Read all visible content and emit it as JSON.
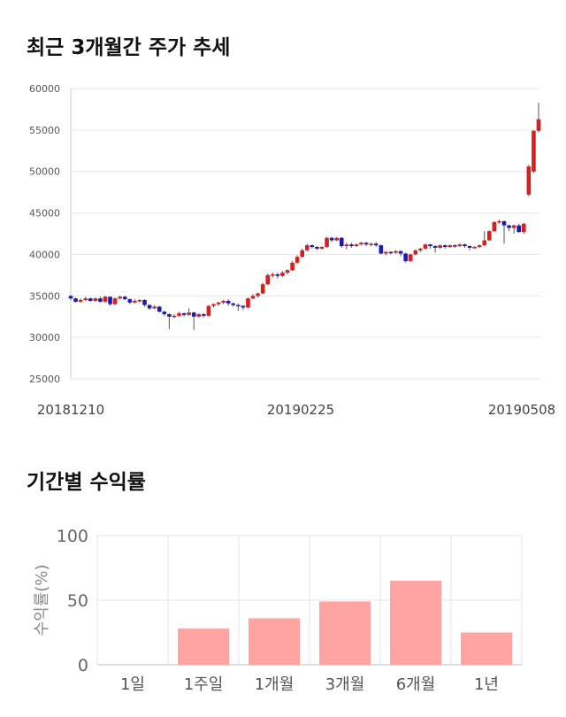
{
  "titles": {
    "price": "최근 3개월간 주가 추세",
    "returns": "기간별 수익률"
  },
  "colors": {
    "up": "#d81f1f",
    "down": "#1b1bb3",
    "bar": "#ffa3a3",
    "grid": "#e6e6e6"
  },
  "chart_data": [
    {
      "type": "candlestick",
      "title": "최근 3개월간 주가 추세",
      "ylim": [
        25000,
        60000
      ],
      "yticks": [
        60000,
        55000,
        50000,
        45000,
        40000,
        35000,
        30000,
        25000
      ],
      "xtick_labels": [
        {
          "index": 0,
          "label": "20181210"
        },
        {
          "index": 50,
          "label": "20190225"
        },
        {
          "index": 99,
          "label": "20190508"
        }
      ],
      "candles": [
        [
          35000,
          34700,
          35100,
          34500
        ],
        [
          34700,
          34300,
          34800,
          34200
        ],
        [
          34300,
          34500,
          34700,
          34200
        ],
        [
          34500,
          34700,
          34900,
          34400
        ],
        [
          34700,
          34400,
          34800,
          34300
        ],
        [
          34400,
          34700,
          34800,
          34300
        ],
        [
          34700,
          34300,
          34900,
          34200
        ],
        [
          34300,
          34900,
          35000,
          34200
        ],
        [
          34900,
          34000,
          34900,
          33800
        ],
        [
          34000,
          34700,
          34800,
          33900
        ],
        [
          34700,
          34900,
          35000,
          34600
        ],
        [
          34900,
          34600,
          35000,
          34500
        ],
        [
          34600,
          34200,
          34700,
          34000
        ],
        [
          34200,
          34400,
          34600,
          34100
        ],
        [
          34400,
          34500,
          34600,
          34200
        ],
        [
          34500,
          33900,
          34600,
          33700
        ],
        [
          33900,
          33500,
          34000,
          33300
        ],
        [
          33500,
          33700,
          33900,
          33400
        ],
        [
          33700,
          33100,
          33800,
          33000
        ],
        [
          33100,
          32800,
          33200,
          32600
        ],
        [
          32800,
          32500,
          32900,
          31000
        ],
        [
          32500,
          32600,
          32800,
          32300
        ],
        [
          32600,
          32900,
          33100,
          32500
        ],
        [
          32900,
          32700,
          33000,
          32500
        ],
        [
          32700,
          33000,
          33500,
          32600
        ],
        [
          33000,
          32500,
          33100,
          30900
        ],
        [
          32500,
          32800,
          32900,
          32400
        ],
        [
          32800,
          32600,
          32900,
          32400
        ],
        [
          32600,
          33800,
          33900,
          32500
        ],
        [
          33800,
          34000,
          34100,
          33600
        ],
        [
          34000,
          34200,
          34300,
          33800
        ],
        [
          34200,
          34400,
          34500,
          34000
        ],
        [
          34400,
          34100,
          34600,
          33800
        ],
        [
          34100,
          33900,
          34200,
          33700
        ],
        [
          33900,
          33800,
          34100,
          33200
        ],
        [
          33800,
          33600,
          33900,
          33300
        ],
        [
          33600,
          34700,
          34800,
          33500
        ],
        [
          34700,
          35000,
          35200,
          34600
        ],
        [
          35000,
          35300,
          35400,
          34800
        ],
        [
          35300,
          36400,
          36600,
          35200
        ],
        [
          36400,
          37500,
          37700,
          36300
        ],
        [
          37500,
          37600,
          37800,
          37200
        ],
        [
          37600,
          37400,
          37800,
          37100
        ],
        [
          37400,
          37800,
          38000,
          37300
        ],
        [
          37800,
          38100,
          38200,
          37600
        ],
        [
          38100,
          39000,
          39200,
          38000
        ],
        [
          39000,
          39700,
          39900,
          38900
        ],
        [
          39700,
          40500,
          40700,
          39600
        ],
        [
          40500,
          41100,
          41300,
          40400
        ],
        [
          41100,
          40900,
          41200,
          40700
        ],
        [
          40900,
          40700,
          41000,
          40500
        ],
        [
          40700,
          40900,
          41000,
          40600
        ],
        [
          40900,
          42000,
          42100,
          40800
        ],
        [
          42000,
          41700,
          42100,
          41500
        ],
        [
          41700,
          42000,
          42100,
          41600
        ],
        [
          42000,
          41000,
          42100,
          40800
        ],
        [
          41000,
          41200,
          41400,
          40600
        ],
        [
          41200,
          41000,
          41400,
          40800
        ],
        [
          41000,
          41200,
          41300,
          40900
        ],
        [
          41200,
          41400,
          41500,
          41100
        ],
        [
          41400,
          41200,
          41500,
          41000
        ],
        [
          41200,
          41300,
          41400,
          41000
        ],
        [
          41300,
          41100,
          41500,
          40900
        ],
        [
          41100,
          40100,
          41200,
          40000
        ],
        [
          40100,
          40300,
          40400,
          39900
        ],
        [
          40300,
          40200,
          40400,
          40000
        ],
        [
          40200,
          40400,
          40500,
          40100
        ],
        [
          40400,
          40100,
          40500,
          39800
        ],
        [
          40100,
          39200,
          40200,
          39000
        ],
        [
          39200,
          40000,
          40100,
          39100
        ],
        [
          40000,
          40500,
          40600,
          39900
        ],
        [
          40500,
          40700,
          40800,
          40300
        ],
        [
          40700,
          41200,
          41300,
          40600
        ],
        [
          41200,
          41000,
          41300,
          40700
        ],
        [
          41000,
          40800,
          41100,
          40200
        ],
        [
          40800,
          41100,
          41200,
          40700
        ],
        [
          41100,
          40900,
          41200,
          40700
        ],
        [
          40900,
          41100,
          41200,
          40800
        ],
        [
          41100,
          41000,
          41200,
          40800
        ],
        [
          41000,
          41200,
          41300,
          40900
        ],
        [
          41200,
          41000,
          41300,
          40800
        ],
        [
          41000,
          40800,
          41100,
          40500
        ],
        [
          40800,
          40900,
          41000,
          40700
        ],
        [
          40900,
          41100,
          41200,
          40800
        ],
        [
          41100,
          41700,
          42800,
          41000
        ],
        [
          41700,
          42800,
          42900,
          41600
        ],
        [
          42800,
          43900,
          44000,
          42700
        ],
        [
          43900,
          44000,
          44200,
          43700
        ],
        [
          44000,
          43500,
          44100,
          41300
        ],
        [
          43500,
          43200,
          43600,
          42800
        ],
        [
          43200,
          43500,
          43600,
          42500
        ],
        [
          43500,
          42700,
          43700,
          42600
        ],
        [
          42700,
          43700,
          43800,
          42500
        ],
        [
          47200,
          50600,
          50800,
          47000
        ],
        [
          50000,
          54900,
          55000,
          49800
        ],
        [
          54900,
          56300,
          58300,
          54700
        ]
      ]
    },
    {
      "type": "bar",
      "title": "기간별 수익률",
      "ylabel": "수익률(%)",
      "ylim": [
        0,
        100
      ],
      "yticks": [
        100,
        50,
        0
      ],
      "categories": [
        "1일",
        "1주일",
        "1개월",
        "3개월",
        "6개월",
        "1년"
      ],
      "values": [
        0,
        28,
        36,
        49,
        65,
        25
      ]
    }
  ]
}
